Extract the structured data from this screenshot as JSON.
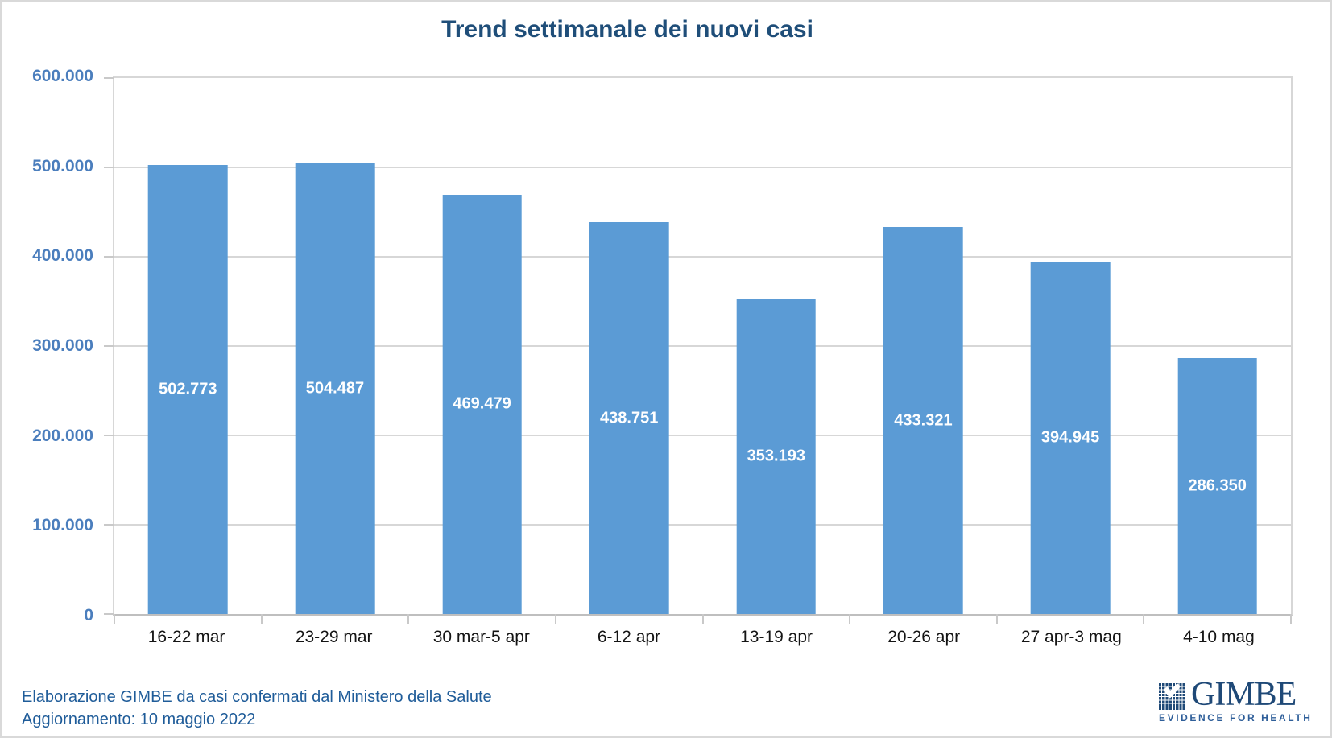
{
  "chart_data": {
    "type": "bar",
    "title": "Trend settimanale dei nuovi casi",
    "categories": [
      "16-22 mar",
      "23-29 mar",
      "30 mar-5 apr",
      "6-12 apr",
      "13-19 apr",
      "20-26 apr",
      "27 apr-3 mag",
      "4-10 mag"
    ],
    "values": [
      502773,
      504487,
      469479,
      438751,
      353193,
      433321,
      394945,
      286350
    ],
    "value_labels": [
      "502.773",
      "504.487",
      "469.479",
      "438.751",
      "353.193",
      "433.321",
      "394.945",
      "286.350"
    ],
    "xlabel": "",
    "ylabel": "",
    "ylim": [
      0,
      600000
    ],
    "y_tick_step": 100000,
    "y_tick_labels": [
      "0",
      "100.000",
      "200.000",
      "300.000",
      "400.000",
      "500.000",
      "600.000"
    ],
    "grid": true,
    "legend": "none",
    "bar_label_position": "inside-center"
  },
  "footer": {
    "line1": "Elaborazione GIMBE da casi confermati dal Ministero della Salute",
    "line2": "Aggiornamento: 10 maggio 2022"
  },
  "logo": {
    "name": "GIMBE",
    "tagline": "EVIDENCE FOR HEALTH"
  },
  "icons": {
    "logo_mark": "gimbe-grid-check-logo-icon"
  },
  "colors": {
    "bar": "#5B9BD5",
    "bar_label": "#FFFFFF",
    "title": "#1F4E79",
    "axis_labels": "#4B7EBD",
    "x_labels": "#141414",
    "gridline": "#D7D7D7",
    "footer": "#1F5C99",
    "logo": "#1F4977"
  }
}
